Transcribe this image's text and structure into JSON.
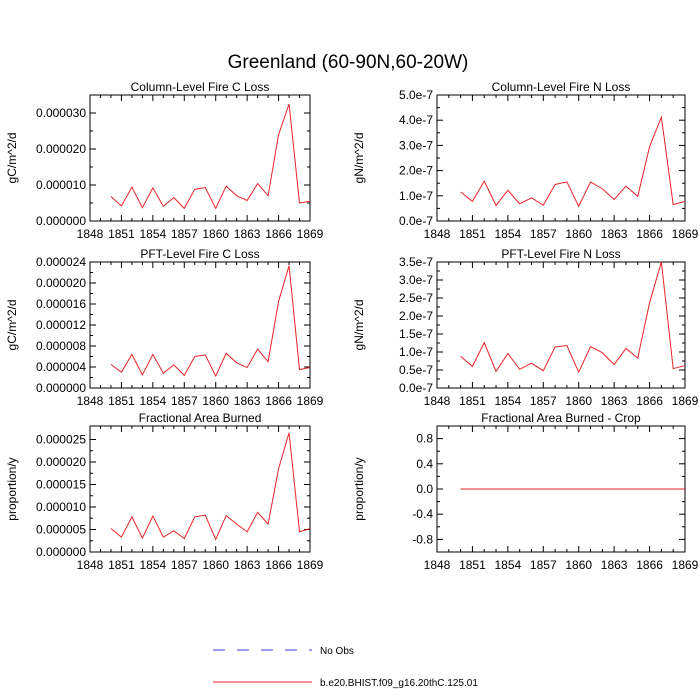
{
  "figure": {
    "title": "Greenland (60-90N,60-20W)"
  },
  "legend": {
    "placement": "bottom-center",
    "entries": [
      {
        "label": "No Obs",
        "color": "#3b3bd6",
        "dash": "dashed"
      },
      {
        "label": "b.e20.BHIST.f09_g16.20thC.125.01",
        "color": "#e8232b",
        "dash": "solid"
      }
    ]
  },
  "chart_data": [
    {
      "type": "line",
      "title": "Column-Level Fire C Loss",
      "ylabel": "gC/m^2/d",
      "xlim": [
        1848,
        1869
      ],
      "ylim": [
        0,
        3.5e-05
      ],
      "xticks": [
        1848,
        1851,
        1854,
        1857,
        1860,
        1863,
        1866,
        1869
      ],
      "yticks": [
        0,
        1e-05,
        2e-05,
        3e-05
      ],
      "ytick_labels": [
        "0.000000",
        "0.000010",
        "0.000020",
        "0.000030"
      ],
      "series": [
        {
          "name": "b.e20.BHIST.f09_g16.20thC.125.01",
          "color": "#e8232b",
          "x": [
            1850,
            1851,
            1852,
            1853,
            1854,
            1855,
            1856,
            1857,
            1858,
            1859,
            1860,
            1861,
            1862,
            1863,
            1864,
            1865,
            1866,
            1867,
            1868,
            1869
          ],
          "y": [
            6.8e-06,
            4.2e-06,
            9.4e-06,
            3.7e-06,
            9.2e-06,
            4.1e-06,
            6.5e-06,
            3.5e-06,
            8.8e-06,
            9.3e-06,
            3.5e-06,
            9.7e-06,
            7e-06,
            5.7e-06,
            1.04e-05,
            7e-06,
            2.4e-05,
            3.25e-05,
            5e-06,
            5.5e-06
          ]
        }
      ]
    },
    {
      "type": "line",
      "title": "Column-Level Fire N Loss",
      "ylabel": "gN/m^2/d",
      "xlim": [
        1848,
        1869
      ],
      "ylim": [
        0,
        5e-07
      ],
      "xticks": [
        1848,
        1851,
        1854,
        1857,
        1860,
        1863,
        1866,
        1869
      ],
      "yticks": [
        0,
        1e-07,
        2e-07,
        3e-07,
        4e-07,
        5e-07
      ],
      "ytick_labels": [
        "0.0e-7",
        "1.0e-7",
        "2.0e-7",
        "3.0e-7",
        "4.0e-7",
        "5.0e-7"
      ],
      "series": [
        {
          "name": "b.e20.BHIST.f09_g16.20thC.125.01",
          "color": "#e8232b",
          "x": [
            1850,
            1851,
            1852,
            1853,
            1854,
            1855,
            1856,
            1857,
            1858,
            1859,
            1860,
            1861,
            1862,
            1863,
            1864,
            1865,
            1866,
            1867,
            1868,
            1869
          ],
          "y": [
            1.15e-07,
            7.8e-08,
            1.58e-07,
            6.2e-08,
            1.22e-07,
            6.8e-08,
            9.2e-08,
            6.3e-08,
            1.45e-07,
            1.55e-07,
            5.8e-08,
            1.55e-07,
            1.28e-07,
            8.5e-08,
            1.38e-07,
            9.8e-08,
            2.95e-07,
            4.12e-07,
            6.5e-08,
            7.8e-08
          ]
        }
      ]
    },
    {
      "type": "line",
      "title": "PFT-Level Fire C Loss",
      "ylabel": "gC/m^2/d",
      "xlim": [
        1848,
        1869
      ],
      "ylim": [
        0,
        2.4e-05
      ],
      "xticks": [
        1848,
        1851,
        1854,
        1857,
        1860,
        1863,
        1866,
        1869
      ],
      "yticks": [
        0,
        4e-06,
        8e-06,
        1.2e-05,
        1.6e-05,
        2e-05,
        2.4e-05
      ],
      "ytick_labels": [
        "0.000000",
        "0.000004",
        "0.000008",
        "0.000012",
        "0.000016",
        "0.000020",
        "0.000024"
      ],
      "series": [
        {
          "name": "b.e20.BHIST.f09_g16.20thC.125.01",
          "color": "#e8232b",
          "x": [
            1850,
            1851,
            1852,
            1853,
            1854,
            1855,
            1856,
            1857,
            1858,
            1859,
            1860,
            1861,
            1862,
            1863,
            1864,
            1865,
            1866,
            1867,
            1868,
            1869
          ],
          "y": [
            4.5e-06,
            3e-06,
            6.4e-06,
            2.5e-06,
            6.4e-06,
            2.8e-06,
            4.4e-06,
            2.4e-06,
            6e-06,
            6.3e-06,
            2.3e-06,
            6.6e-06,
            4.8e-06,
            3.9e-06,
            7.4e-06,
            5e-06,
            1.65e-05,
            2.33e-05,
            3.5e-06,
            3.9e-06
          ]
        }
      ]
    },
    {
      "type": "line",
      "title": "PFT-Level Fire N Loss",
      "ylabel": "gN/m^2/d",
      "xlim": [
        1848,
        1869
      ],
      "ylim": [
        0,
        3.5e-07
      ],
      "xticks": [
        1848,
        1851,
        1854,
        1857,
        1860,
        1863,
        1866,
        1869
      ],
      "yticks": [
        0,
        5e-08,
        1e-07,
        1.5e-07,
        2e-07,
        2.5e-07,
        3e-07,
        3.5e-07
      ],
      "ytick_labels": [
        "0.0e-7",
        "0.5e-7",
        "1.0e-7",
        "1.5e-7",
        "2.0e-7",
        "2.5e-7",
        "3.0e-7",
        "3.5e-7"
      ],
      "series": [
        {
          "name": "b.e20.BHIST.f09_g16.20thC.125.01",
          "color": "#e8232b",
          "x": [
            1850,
            1851,
            1852,
            1853,
            1854,
            1855,
            1856,
            1857,
            1858,
            1859,
            1860,
            1861,
            1862,
            1863,
            1864,
            1865,
            1866,
            1867,
            1868,
            1869
          ],
          "y": [
            8.8e-08,
            6e-08,
            1.26e-07,
            4.6e-08,
            9.6e-08,
            5.2e-08,
            6.9e-08,
            4.8e-08,
            1.14e-07,
            1.18e-07,
            4.4e-08,
            1.15e-07,
            9.8e-08,
            6.5e-08,
            1.1e-07,
            8.3e-08,
            2.37e-07,
            3.5e-07,
            5.4e-08,
            6.2e-08
          ]
        }
      ]
    },
    {
      "type": "line",
      "title": "Fractional Area Burned",
      "ylabel": "proportion/y",
      "xlim": [
        1848,
        1869
      ],
      "ylim": [
        0,
        2.8e-05
      ],
      "xticks": [
        1848,
        1851,
        1854,
        1857,
        1860,
        1863,
        1866,
        1869
      ],
      "yticks": [
        0,
        5e-06,
        1e-05,
        1.5e-05,
        2e-05,
        2.5e-05
      ],
      "ytick_labels": [
        "0.000000",
        "0.000005",
        "0.000010",
        "0.000015",
        "0.000020",
        "0.000025"
      ],
      "series": [
        {
          "name": "b.e20.BHIST.f09_g16.20thC.125.01",
          "color": "#e8232b",
          "x": [
            1850,
            1851,
            1852,
            1853,
            1854,
            1855,
            1856,
            1857,
            1858,
            1859,
            1860,
            1861,
            1862,
            1863,
            1864,
            1865,
            1866,
            1867,
            1868,
            1869
          ],
          "y": [
            5.2e-06,
            3.3e-06,
            7.8e-06,
            3.1e-06,
            8e-06,
            3.3e-06,
            4.7e-06,
            3e-06,
            7.8e-06,
            8.2e-06,
            2.8e-06,
            8.1e-06,
            6.2e-06,
            4.5e-06,
            8.8e-06,
            6.2e-06,
            1.85e-05,
            2.65e-05,
            4.5e-06,
            5.2e-06
          ]
        }
      ]
    },
    {
      "type": "line",
      "title": "Fractional Area Burned - Crop",
      "ylabel": "proportion/y",
      "xlim": [
        1848,
        1869
      ],
      "ylim": [
        -1,
        1
      ],
      "xticks": [
        1848,
        1851,
        1854,
        1857,
        1860,
        1863,
        1866,
        1869
      ],
      "yticks": [
        -0.8,
        -0.4,
        0,
        0.4,
        0.8
      ],
      "ytick_labels": [
        "-0.8",
        "-0.4",
        "0.0",
        "0.4",
        "0.8"
      ],
      "series": [
        {
          "name": "b.e20.BHIST.f09_g16.20thC.125.01",
          "color": "#e8232b",
          "x": [
            1850,
            1851,
            1852,
            1853,
            1854,
            1855,
            1856,
            1857,
            1858,
            1859,
            1860,
            1861,
            1862,
            1863,
            1864,
            1865,
            1866,
            1867,
            1868,
            1869
          ],
          "y": [
            0,
            0,
            0,
            0,
            0,
            0,
            0,
            0,
            0,
            0,
            0,
            0,
            0,
            0,
            0,
            0,
            0,
            0,
            0,
            0
          ]
        }
      ]
    }
  ]
}
